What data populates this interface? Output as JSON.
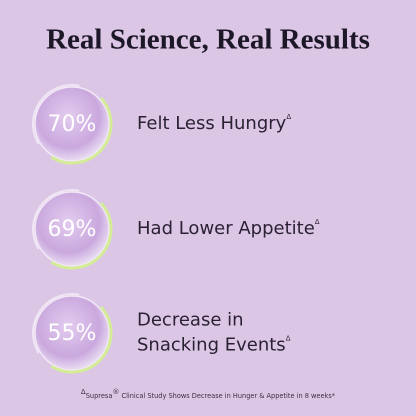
{
  "title": "Real Science, Real Results",
  "items": [
    {
      "percent": "70%",
      "label": [
        "Felt Less Hungry"
      ],
      "mark": "Δ"
    },
    {
      "percent": "69%",
      "label": [
        "Had Lower Appetite"
      ],
      "mark": "Δ"
    },
    {
      "percent": "55%",
      "label": [
        "Decrease in",
        "Snacking Events"
      ],
      "mark": "Δ"
    }
  ],
  "footnote": {
    "mark": "Δ",
    "brand": "Supresa",
    "registered": "®",
    "text": " Clinical Study Shows Decrease in Hunger & Appetite in 8 weeks*"
  }
}
